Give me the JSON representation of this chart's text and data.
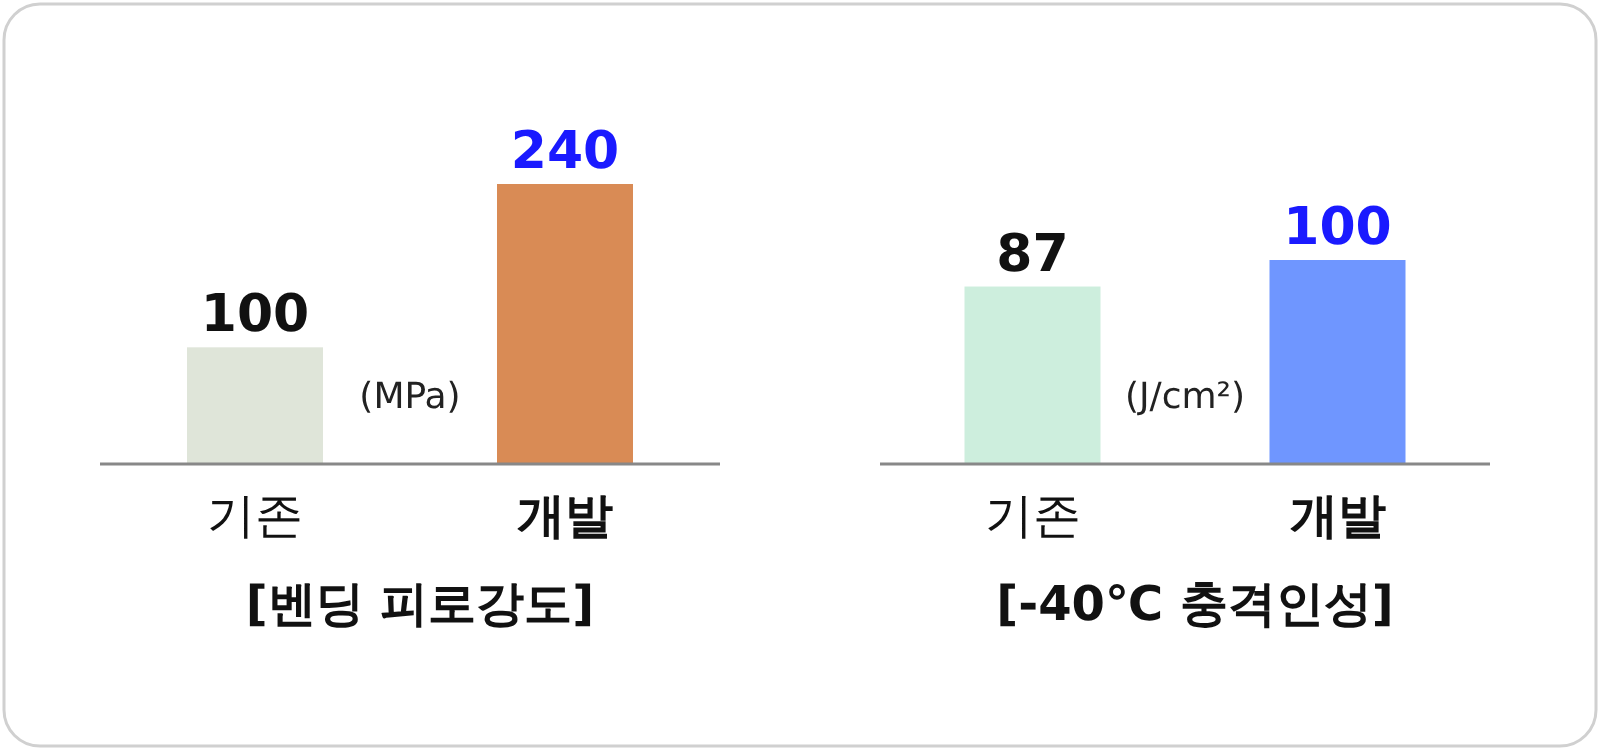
{
  "chart_data": [
    {
      "type": "bar",
      "title": "[벤딩 피로강도]",
      "categories": [
        "기존",
        "개발"
      ],
      "values": [
        100,
        240
      ],
      "colors": [
        "#dfe5d9",
        "#d98b55"
      ],
      "data_labels": true,
      "annotations": [
        "(MPa)"
      ]
    },
    {
      "type": "bar",
      "title": "[-40℃ 충격인성]",
      "categories": [
        "기존",
        "개발"
      ],
      "values": [
        87,
        100
      ],
      "colors": [
        "#cdeedd",
        "#6f96ff"
      ],
      "data_labels": true,
      "annotations": [
        "(J/cm²)"
      ]
    }
  ]
}
